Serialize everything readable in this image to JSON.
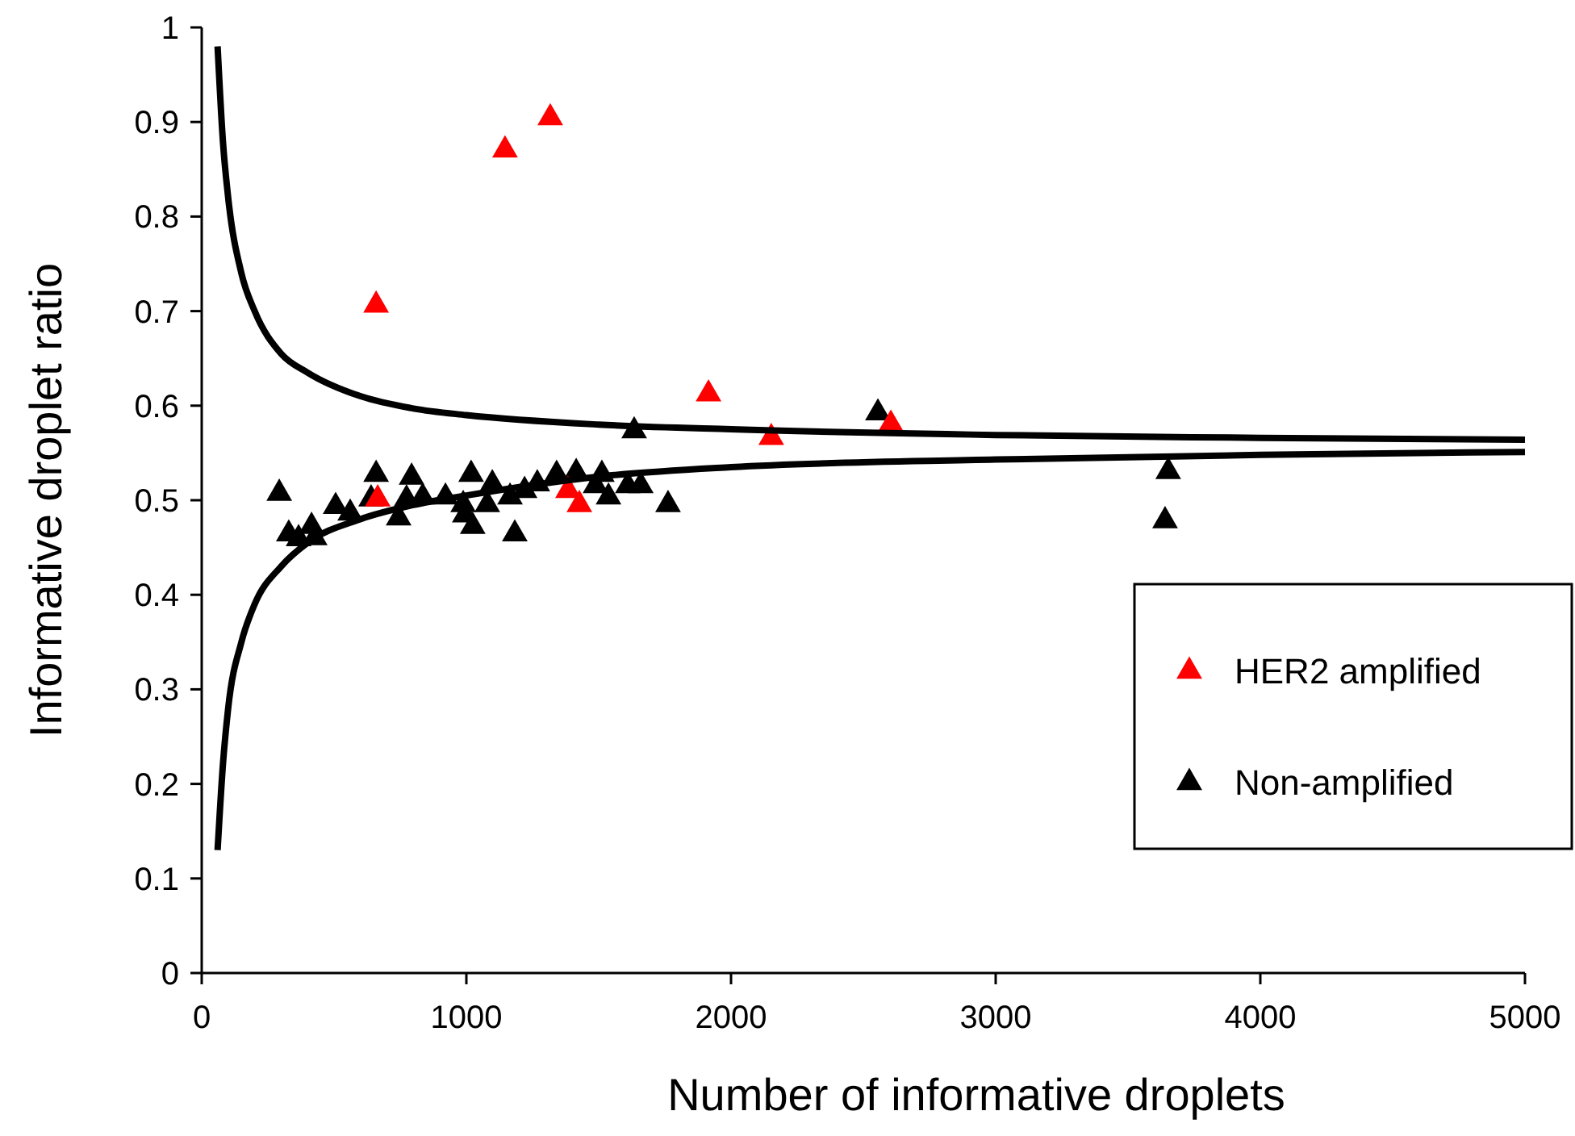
{
  "chart_data": {
    "type": "scatter",
    "xlabel": "Number of informative droplets",
    "ylabel": "Informative droplet ratio",
    "xlim": [
      0,
      5000
    ],
    "ylim": [
      0,
      1
    ],
    "xticks": [
      0,
      1000,
      2000,
      3000,
      4000,
      5000
    ],
    "yticks": [
      0,
      0.1,
      0.2,
      0.3,
      0.4,
      0.5,
      0.6,
      0.7,
      0.8,
      0.9,
      1
    ],
    "grid": false,
    "legend": "right",
    "marker": "triangle",
    "series": [
      {
        "type": "line",
        "color": "#000000",
        "marker": "none",
        "line_style": "solid",
        "x": [
          60,
          80,
          100,
          150,
          200,
          300,
          400,
          600,
          800,
          1000,
          1500,
          2000,
          3000,
          4000,
          5000
        ],
        "values": [
          0.98,
          0.88,
          0.82,
          0.74,
          0.7,
          0.655,
          0.635,
          0.61,
          0.597,
          0.59,
          0.58,
          0.575,
          0.569,
          0.566,
          0.564
        ]
      },
      {
        "type": "line",
        "color": "#000000",
        "marker": "none",
        "line_style": "solid",
        "x": [
          60,
          80,
          100,
          150,
          200,
          300,
          400,
          600,
          800,
          1000,
          1500,
          2000,
          3000,
          4000,
          5000
        ],
        "values": [
          0.13,
          0.22,
          0.28,
          0.35,
          0.39,
          0.43,
          0.455,
          0.48,
          0.495,
          0.505,
          0.525,
          0.535,
          0.543,
          0.548,
          0.551
        ]
      },
      {
        "name": "HER2 amplified",
        "color": "#ff0000",
        "x": [
          659,
          1146,
          1317,
          665,
          1384,
          1427,
          1915,
          2152,
          2604
        ],
        "values": [
          0.708,
          0.872,
          0.906,
          0.503,
          0.512,
          0.497,
          0.614,
          0.568,
          0.582
        ]
      },
      {
        "name": "Non-amplified",
        "color": "#000000",
        "x": [
          293,
          329,
          366,
          415,
          427,
          506,
          561,
          659,
          640,
          744,
          793,
          774,
          835,
          921,
          988,
          994,
          1018,
          1024,
          1079,
          1098,
          1165,
          1183,
          1220,
          1268,
          1341,
          1415,
          1488,
          1512,
          1537,
          1610,
          1659,
          1762,
          1634,
          2555,
          3652,
          3640
        ],
        "values": [
          0.509,
          0.466,
          0.461,
          0.474,
          0.462,
          0.495,
          0.488,
          0.529,
          0.503,
          0.483,
          0.526,
          0.503,
          0.505,
          0.505,
          0.497,
          0.486,
          0.529,
          0.474,
          0.497,
          0.519,
          0.505,
          0.466,
          0.512,
          0.519,
          0.529,
          0.531,
          0.517,
          0.529,
          0.505,
          0.517,
          0.517,
          0.497,
          0.575,
          0.594,
          0.532,
          0.48
        ]
      }
    ]
  }
}
